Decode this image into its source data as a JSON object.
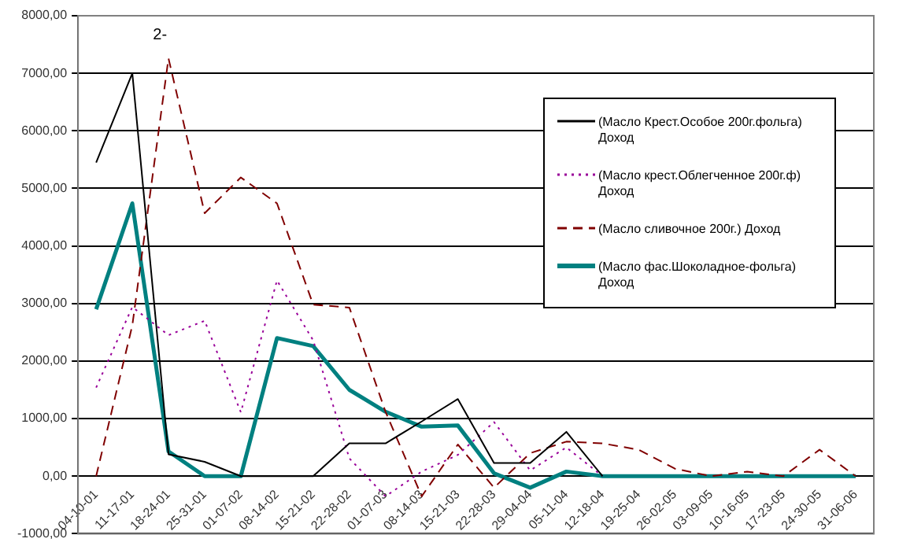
{
  "chart_data": {
    "type": "line",
    "categories": [
      "04-10-01",
      "11-17-01",
      "18-24-01",
      "25-31-01",
      "01-07-02",
      "08-14-02",
      "15-21-02",
      "22-28-02",
      "01-07-03",
      "08-14-03",
      "15-21-03",
      "22-28-03",
      "29-04-04",
      "05-11-04",
      "12-18-04",
      "19-25-04",
      "26-02-05",
      "03-09-05",
      "10-16-05",
      "17-23-05",
      "24-30-05",
      "31-06-06"
    ],
    "series": [
      {
        "name": "(Масло Крест.Особое 200г.фольга) Доход",
        "color": "#000000",
        "line_style": "solid",
        "values": [
          5450,
          7000,
          380,
          250,
          0,
          0,
          0,
          570,
          570,
          950,
          1340,
          230,
          230,
          770,
          0,
          null,
          null,
          null,
          null,
          null,
          null,
          null
        ]
      },
      {
        "name": "(Масло крест.Облегченное 200г.ф) Доход",
        "color": "#990099",
        "line_style": "dotted",
        "values": [
          1540,
          2940,
          2450,
          2700,
          1110,
          3400,
          2360,
          310,
          -350,
          80,
          370,
          940,
          100,
          500,
          0,
          null,
          null,
          null,
          null,
          null,
          null,
          null
        ]
      },
      {
        "name": "(Масло сливочное 200г.) Доход",
        "color": "#800000",
        "line_style": "dashed",
        "values": [
          0,
          2620,
          7260,
          4570,
          5190,
          4740,
          2980,
          2930,
          1120,
          -350,
          550,
          -200,
          400,
          600,
          570,
          460,
          130,
          0,
          80,
          0,
          460,
          0
        ]
      },
      {
        "name": "(Масло фас.Шоколадное-фольга) Доход",
        "color": "#008080",
        "line_style": "solid",
        "values": [
          2900,
          4740,
          430,
          0,
          0,
          2400,
          2260,
          1500,
          1120,
          860,
          880,
          50,
          -200,
          80,
          0,
          0,
          0,
          0,
          0,
          0,
          0,
          0
        ]
      }
    ],
    "ylim": [
      -1000,
      8000
    ],
    "yticks": [
      {
        "value": -1000,
        "label": "-1000,00"
      },
      {
        "value": 0,
        "label": "0,00"
      },
      {
        "value": 1000,
        "label": "1000,00"
      },
      {
        "value": 2000,
        "label": "2000,00"
      },
      {
        "value": 3000,
        "label": "3000,00"
      },
      {
        "value": 4000,
        "label": "4000,00"
      },
      {
        "value": 5000,
        "label": "5000,00"
      },
      {
        "value": 6000,
        "label": "6000,00"
      },
      {
        "value": 7000,
        "label": "7000,00"
      },
      {
        "value": 8000,
        "label": "8000,00"
      }
    ],
    "grid": "y",
    "legend": "top right",
    "marker": "none",
    "annotations": [
      "2-"
    ]
  }
}
